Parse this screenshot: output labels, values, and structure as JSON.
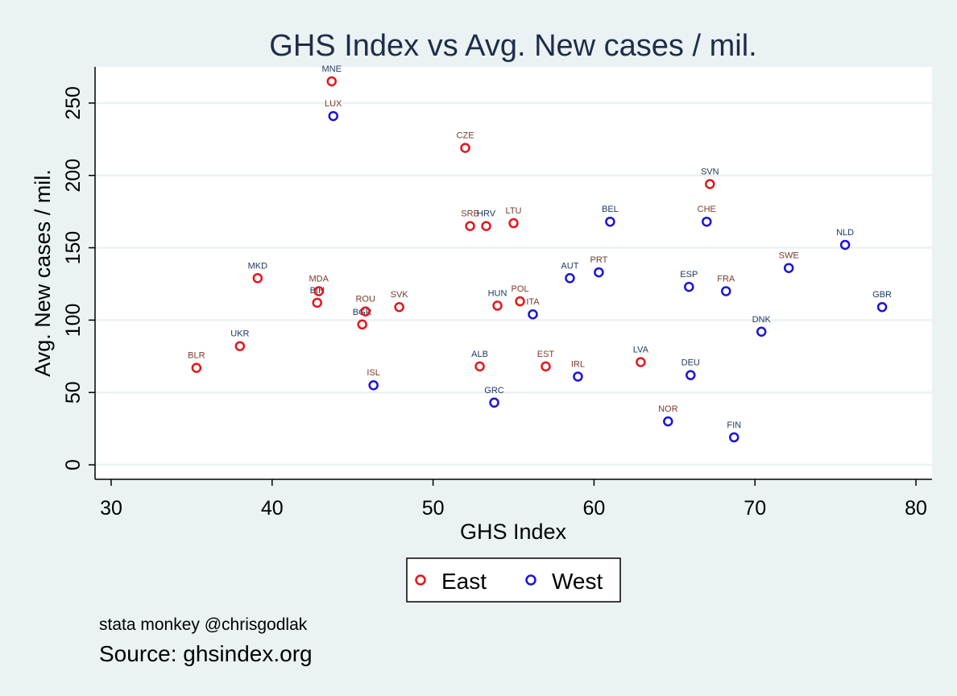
{
  "chart_data": {
    "type": "scatter",
    "title": "GHS Index vs Avg. New cases / mil.",
    "xlabel": "GHS Index",
    "ylabel": "Avg. New cases / mil.",
    "xlim": [
      29,
      81
    ],
    "ylim": [
      -10,
      275
    ],
    "x_ticks": [
      30,
      40,
      50,
      60,
      70,
      80
    ],
    "y_ticks": [
      0,
      50,
      100,
      150,
      200,
      250
    ],
    "grid": "horizontal",
    "legend_position": "bottom",
    "series": [
      {
        "name": "East",
        "color": "#e8141b",
        "points": [
          {
            "label": "MNE",
            "x": 43.7,
            "y": 265
          },
          {
            "label": "CZE",
            "x": 52.0,
            "y": 219
          },
          {
            "label": "SVN",
            "x": 67.2,
            "y": 194
          },
          {
            "label": "SRB",
            "x": 52.3,
            "y": 165
          },
          {
            "label": "HRV",
            "x": 53.3,
            "y": 165
          },
          {
            "label": "LTU",
            "x": 55.0,
            "y": 167
          },
          {
            "label": "MKD",
            "x": 39.1,
            "y": 129
          },
          {
            "label": "MDA",
            "x": 42.9,
            "y": 120
          },
          {
            "label": "BIH",
            "x": 42.8,
            "y": 112
          },
          {
            "label": "ROU",
            "x": 45.8,
            "y": 106
          },
          {
            "label": "BGR",
            "x": 45.6,
            "y": 97
          },
          {
            "label": "SVK",
            "x": 47.9,
            "y": 109
          },
          {
            "label": "HUN",
            "x": 54.0,
            "y": 110
          },
          {
            "label": "POL",
            "x": 55.4,
            "y": 113
          },
          {
            "label": "UKR",
            "x": 38.0,
            "y": 82
          },
          {
            "label": "BLR",
            "x": 35.3,
            "y": 67
          },
          {
            "label": "ALB",
            "x": 52.9,
            "y": 68
          },
          {
            "label": "EST",
            "x": 57.0,
            "y": 68
          },
          {
            "label": "LVA",
            "x": 62.9,
            "y": 71
          }
        ]
      },
      {
        "name": "West",
        "color": "#1a14d6",
        "points": [
          {
            "label": "LUX",
            "x": 43.8,
            "y": 241
          },
          {
            "label": "BEL",
            "x": 61.0,
            "y": 168
          },
          {
            "label": "CHE",
            "x": 67.0,
            "y": 168
          },
          {
            "label": "NLD",
            "x": 75.6,
            "y": 152
          },
          {
            "label": "SWE",
            "x": 72.1,
            "y": 136
          },
          {
            "label": "AUT",
            "x": 58.5,
            "y": 129
          },
          {
            "label": "PRT",
            "x": 60.3,
            "y": 133
          },
          {
            "label": "ESP",
            "x": 65.9,
            "y": 123
          },
          {
            "label": "FRA",
            "x": 68.2,
            "y": 120
          },
          {
            "label": "GBR",
            "x": 77.9,
            "y": 109
          },
          {
            "label": "ITA",
            "x": 56.2,
            "y": 104
          },
          {
            "label": "DNK",
            "x": 70.4,
            "y": 92
          },
          {
            "label": "ISL",
            "x": 46.3,
            "y": 55
          },
          {
            "label": "GRC",
            "x": 53.8,
            "y": 43
          },
          {
            "label": "IRL",
            "x": 59.0,
            "y": 61
          },
          {
            "label": "DEU",
            "x": 66.0,
            "y": 62
          },
          {
            "label": "NOR",
            "x": 64.6,
            "y": 30
          },
          {
            "label": "FIN",
            "x": 68.7,
            "y": 19
          }
        ]
      }
    ]
  },
  "notes": {
    "line1": "stata monkey @chrisgodlak",
    "line2": "Source: ghsindex.org"
  }
}
